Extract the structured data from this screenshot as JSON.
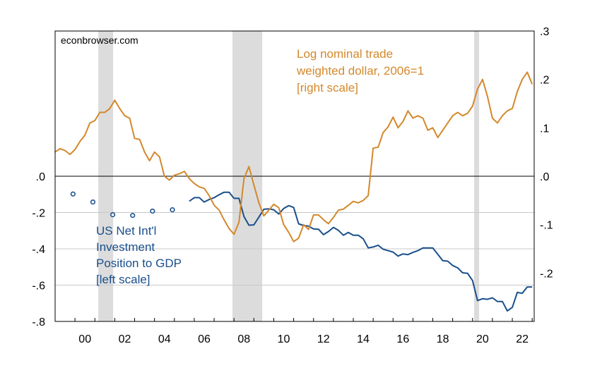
{
  "source_note": "econbrowser.com",
  "colors": {
    "left_series": "#1a4f8c",
    "right_series": "#d4882b",
    "recession": "#dcdcdc",
    "grid": "#c8c8c8",
    "zero_line": "#000000"
  },
  "chart_data": {
    "type": "line",
    "title": "",
    "xlabel": "",
    "x_range": [
      1999.0,
      2023.1
    ],
    "x_ticks": [
      {
        "x": 2000,
        "label": "00"
      },
      {
        "x": 2002,
        "label": "02"
      },
      {
        "x": 2004,
        "label": "04"
      },
      {
        "x": 2006,
        "label": "06"
      },
      {
        "x": 2008,
        "label": "08"
      },
      {
        "x": 2010,
        "label": "10"
      },
      {
        "x": 2012,
        "label": "12"
      },
      {
        "x": 2014,
        "label": "14"
      },
      {
        "x": 2016,
        "label": "16"
      },
      {
        "x": 2018,
        "label": "18"
      },
      {
        "x": 2020,
        "label": "20"
      },
      {
        "x": 2022,
        "label": "22"
      }
    ],
    "left_axis": {
      "ylim": [
        -0.8,
        0.8
      ],
      "ticks": [
        {
          "v": 0.0,
          "label": ".0"
        },
        {
          "v": -0.2,
          "label": "-.2"
        },
        {
          "v": -0.4,
          "label": "-.4"
        },
        {
          "v": -0.6,
          "label": "-.6"
        },
        {
          "v": -0.8,
          "label": "-.8"
        }
      ]
    },
    "right_axis": {
      "ylim": [
        -0.3,
        0.3
      ],
      "ticks": [
        {
          "v": 0.3,
          "label": ".3"
        },
        {
          "v": 0.2,
          "label": ".2"
        },
        {
          "v": 0.1,
          "label": ".1"
        },
        {
          "v": 0.0,
          "label": ".0"
        },
        {
          "v": -0.1,
          "label": "-.1"
        },
        {
          "v": -0.2,
          "label": "-.2"
        }
      ]
    },
    "recessions": [
      [
        2001.17,
        2001.92
      ],
      [
        2007.92,
        2009.42
      ],
      [
        2020.08,
        2020.33
      ]
    ],
    "series": [
      {
        "name": "US Net Int'l Investment Position to GDP",
        "label_lines": [
          "US Net Int'l",
          "Investment",
          "Position to GDP",
          "[left scale]"
        ],
        "axis": "left",
        "annual_markers": [
          {
            "x": 1999.9,
            "y": -0.098
          },
          {
            "x": 2000.9,
            "y": -0.142
          },
          {
            "x": 2001.9,
            "y": -0.212
          },
          {
            "x": 2002.9,
            "y": -0.216
          },
          {
            "x": 2003.9,
            "y": -0.192
          },
          {
            "x": 2004.9,
            "y": -0.185
          }
        ],
        "x": [
          2005.75,
          2006.0,
          2006.25,
          2006.5,
          2006.75,
          2007.0,
          2007.25,
          2007.5,
          2007.75,
          2008.0,
          2008.25,
          2008.5,
          2008.75,
          2009.0,
          2009.25,
          2009.5,
          2009.75,
          2010.0,
          2010.25,
          2010.5,
          2010.75,
          2011.0,
          2011.25,
          2011.5,
          2011.75,
          2012.0,
          2012.25,
          2012.5,
          2012.75,
          2013.0,
          2013.25,
          2013.5,
          2013.75,
          2014.0,
          2014.25,
          2014.5,
          2014.75,
          2015.0,
          2015.25,
          2015.5,
          2015.75,
          2016.0,
          2016.25,
          2016.5,
          2016.75,
          2017.0,
          2017.25,
          2017.5,
          2017.75,
          2018.0,
          2018.25,
          2018.5,
          2018.75,
          2019.0,
          2019.25,
          2019.5,
          2019.75,
          2020.0,
          2020.25,
          2020.5,
          2020.75,
          2021.0,
          2021.25,
          2021.5,
          2021.75,
          2022.0,
          2022.25,
          2022.5,
          2022.75,
          2023.0
        ],
        "values": [
          -0.138,
          -0.118,
          -0.118,
          -0.142,
          -0.128,
          -0.118,
          -0.102,
          -0.088,
          -0.088,
          -0.122,
          -0.122,
          -0.222,
          -0.27,
          -0.268,
          -0.225,
          -0.182,
          -0.18,
          -0.185,
          -0.208,
          -0.178,
          -0.162,
          -0.172,
          -0.262,
          -0.272,
          -0.275,
          -0.29,
          -0.292,
          -0.322,
          -0.305,
          -0.282,
          -0.298,
          -0.325,
          -0.31,
          -0.325,
          -0.325,
          -0.345,
          -0.395,
          -0.39,
          -0.38,
          -0.402,
          -0.41,
          -0.418,
          -0.44,
          -0.428,
          -0.432,
          -0.42,
          -0.41,
          -0.395,
          -0.395,
          -0.395,
          -0.43,
          -0.465,
          -0.468,
          -0.492,
          -0.505,
          -0.532,
          -0.535,
          -0.575,
          -0.685,
          -0.675,
          -0.678,
          -0.67,
          -0.69,
          -0.69,
          -0.742,
          -0.722,
          -0.64,
          -0.645,
          -0.61,
          -0.61
        ]
      },
      {
        "name": "Log nominal trade weighted dollar, 2006=1",
        "label_lines": [
          "Log nominal trade",
          "weighted dollar, 2006=1",
          "[right scale]"
        ],
        "axis": "right",
        "x": [
          1999.0,
          1999.25,
          1999.5,
          1999.75,
          2000.0,
          2000.25,
          2000.5,
          2000.75,
          2001.0,
          2001.25,
          2001.5,
          2001.75,
          2002.0,
          2002.25,
          2002.5,
          2002.75,
          2003.0,
          2003.25,
          2003.5,
          2003.75,
          2004.0,
          2004.25,
          2004.5,
          2004.75,
          2005.0,
          2005.25,
          2005.5,
          2005.75,
          2006.0,
          2006.25,
          2006.5,
          2006.75,
          2007.0,
          2007.25,
          2007.5,
          2007.75,
          2008.0,
          2008.25,
          2008.5,
          2008.75,
          2009.0,
          2009.25,
          2009.5,
          2009.75,
          2010.0,
          2010.25,
          2010.5,
          2010.75,
          2011.0,
          2011.25,
          2011.5,
          2011.75,
          2012.0,
          2012.25,
          2012.5,
          2012.75,
          2013.0,
          2013.25,
          2013.5,
          2013.75,
          2014.0,
          2014.25,
          2014.5,
          2014.75,
          2015.0,
          2015.25,
          2015.5,
          2015.75,
          2016.0,
          2016.25,
          2016.5,
          2016.75,
          2017.0,
          2017.25,
          2017.5,
          2017.75,
          2018.0,
          2018.25,
          2018.5,
          2018.75,
          2019.0,
          2019.25,
          2019.5,
          2019.75,
          2020.0,
          2020.25,
          2020.5,
          2020.75,
          2021.0,
          2021.25,
          2021.5,
          2021.75,
          2022.0,
          2022.25,
          2022.5,
          2022.75,
          2023.0
        ],
        "values": [
          0.05,
          0.057,
          0.053,
          0.045,
          0.055,
          0.072,
          0.085,
          0.11,
          0.115,
          0.132,
          0.132,
          0.14,
          0.157,
          0.14,
          0.125,
          0.12,
          0.078,
          0.076,
          0.05,
          0.032,
          0.05,
          0.04,
          0.0,
          -0.008,
          0.002,
          0.005,
          0.01,
          -0.005,
          -0.015,
          -0.022,
          -0.025,
          -0.04,
          -0.06,
          -0.07,
          -0.09,
          -0.108,
          -0.12,
          -0.095,
          -0.005,
          0.02,
          -0.018,
          -0.055,
          -0.082,
          -0.07,
          -0.058,
          -0.065,
          -0.1,
          -0.116,
          -0.135,
          -0.128,
          -0.1,
          -0.11,
          -0.08,
          -0.08,
          -0.09,
          -0.098,
          -0.085,
          -0.07,
          -0.068,
          -0.06,
          -0.052,
          -0.055,
          -0.05,
          -0.04,
          0.058,
          0.06,
          0.09,
          0.102,
          0.122,
          0.1,
          0.113,
          0.135,
          0.12,
          0.125,
          0.12,
          0.095,
          0.1,
          0.08,
          0.095,
          0.11,
          0.125,
          0.132,
          0.125,
          0.13,
          0.145,
          0.18,
          0.2,
          0.165,
          0.12,
          0.11,
          0.125,
          0.135,
          0.14,
          0.175,
          0.2,
          0.215,
          0.19
        ]
      }
    ],
    "legend": "inline-labels"
  }
}
